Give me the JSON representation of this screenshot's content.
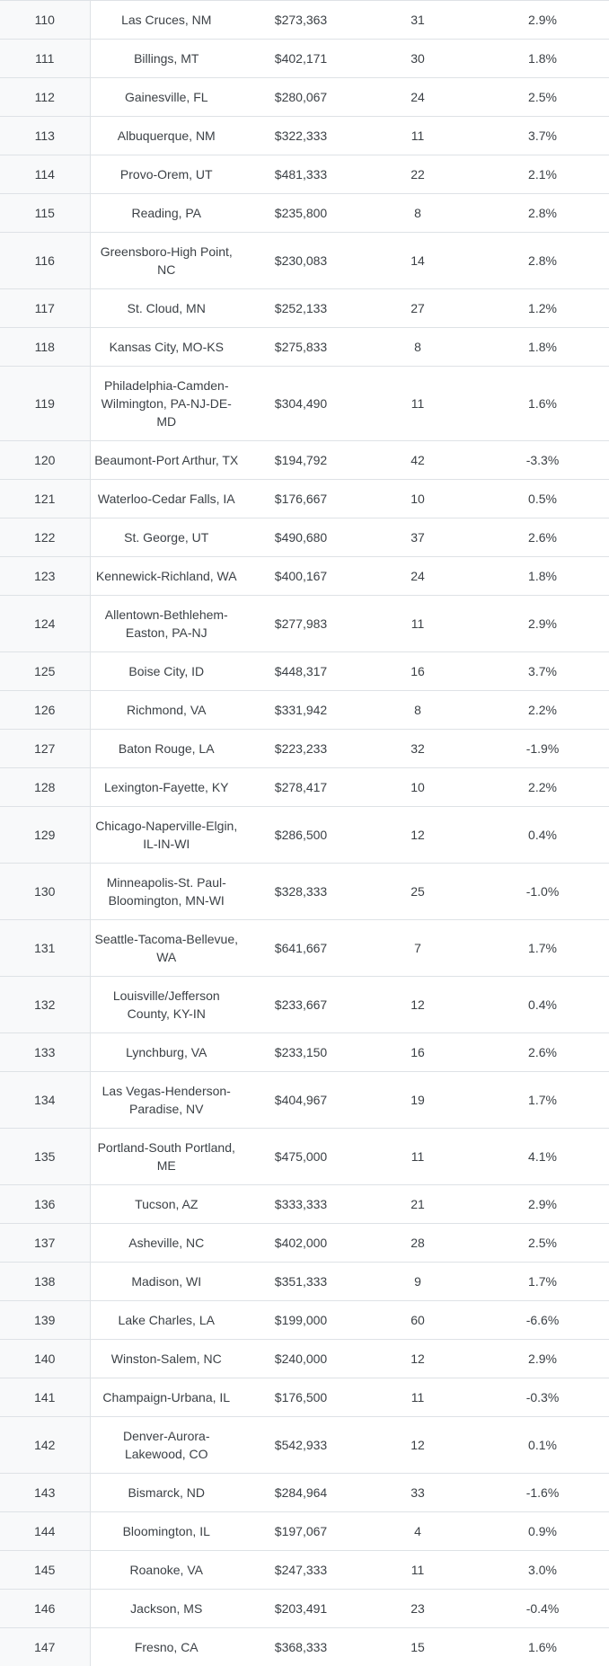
{
  "colors": {
    "rank_column_bg": "#f8f9fa",
    "row_bg": "#ffffff",
    "border": "#dee2e6",
    "text": "#3c4146"
  },
  "table": {
    "columns": [
      "rank",
      "metro_area",
      "median_price",
      "count",
      "percent_change"
    ],
    "rows": [
      {
        "rank": "110",
        "city": "Las Cruces, NM",
        "price": "$273,363",
        "count": "31",
        "pct": "2.9%"
      },
      {
        "rank": "111",
        "city": "Billings, MT",
        "price": "$402,171",
        "count": "30",
        "pct": "1.8%"
      },
      {
        "rank": "112",
        "city": "Gainesville, FL",
        "price": "$280,067",
        "count": "24",
        "pct": "2.5%"
      },
      {
        "rank": "113",
        "city": "Albuquerque, NM",
        "price": "$322,333",
        "count": "11",
        "pct": "3.7%"
      },
      {
        "rank": "114",
        "city": "Provo-Orem, UT",
        "price": "$481,333",
        "count": "22",
        "pct": "2.1%"
      },
      {
        "rank": "115",
        "city": "Reading, PA",
        "price": "$235,800",
        "count": "8",
        "pct": "2.8%"
      },
      {
        "rank": "116",
        "city": "Greensboro-High Point, NC",
        "price": "$230,083",
        "count": "14",
        "pct": "2.8%"
      },
      {
        "rank": "117",
        "city": "St. Cloud, MN",
        "price": "$252,133",
        "count": "27",
        "pct": "1.2%"
      },
      {
        "rank": "118",
        "city": "Kansas City, MO-KS",
        "price": "$275,833",
        "count": "8",
        "pct": "1.8%"
      },
      {
        "rank": "119",
        "city": "Philadelphia-Camden-Wilmington, PA-NJ-DE-MD",
        "price": "$304,490",
        "count": "11",
        "pct": "1.6%"
      },
      {
        "rank": "120",
        "city": "Beaumont-Port Arthur, TX",
        "price": "$194,792",
        "count": "42",
        "pct": "-3.3%"
      },
      {
        "rank": "121",
        "city": "Waterloo-Cedar Falls, IA",
        "price": "$176,667",
        "count": "10",
        "pct": "0.5%"
      },
      {
        "rank": "122",
        "city": "St. George, UT",
        "price": "$490,680",
        "count": "37",
        "pct": "2.6%"
      },
      {
        "rank": "123",
        "city": "Kennewick-Richland, WA",
        "price": "$400,167",
        "count": "24",
        "pct": "1.8%"
      },
      {
        "rank": "124",
        "city": "Allentown-Bethlehem-Easton, PA-NJ",
        "price": "$277,983",
        "count": "11",
        "pct": "2.9%"
      },
      {
        "rank": "125",
        "city": "Boise City, ID",
        "price": "$448,317",
        "count": "16",
        "pct": "3.7%"
      },
      {
        "rank": "126",
        "city": "Richmond, VA",
        "price": "$331,942",
        "count": "8",
        "pct": "2.2%"
      },
      {
        "rank": "127",
        "city": "Baton Rouge, LA",
        "price": "$223,233",
        "count": "32",
        "pct": "-1.9%"
      },
      {
        "rank": "128",
        "city": "Lexington-Fayette, KY",
        "price": "$278,417",
        "count": "10",
        "pct": "2.2%"
      },
      {
        "rank": "129",
        "city": "Chicago-Naperville-Elgin, IL-IN-WI",
        "price": "$286,500",
        "count": "12",
        "pct": "0.4%"
      },
      {
        "rank": "130",
        "city": "Minneapolis-St. Paul-Bloomington, MN-WI",
        "price": "$328,333",
        "count": "25",
        "pct": "-1.0%"
      },
      {
        "rank": "131",
        "city": "Seattle-Tacoma-Bellevue, WA",
        "price": "$641,667",
        "count": "7",
        "pct": "1.7%"
      },
      {
        "rank": "132",
        "city": "Louisville/Jefferson County, KY-IN",
        "price": "$233,667",
        "count": "12",
        "pct": "0.4%"
      },
      {
        "rank": "133",
        "city": "Lynchburg, VA",
        "price": "$233,150",
        "count": "16",
        "pct": "2.6%"
      },
      {
        "rank": "134",
        "city": "Las Vegas-Henderson-Paradise, NV",
        "price": "$404,967",
        "count": "19",
        "pct": "1.7%"
      },
      {
        "rank": "135",
        "city": "Portland-South Portland, ME",
        "price": "$475,000",
        "count": "11",
        "pct": "4.1%"
      },
      {
        "rank": "136",
        "city": "Tucson, AZ",
        "price": "$333,333",
        "count": "21",
        "pct": "2.9%"
      },
      {
        "rank": "137",
        "city": "Asheville, NC",
        "price": "$402,000",
        "count": "28",
        "pct": "2.5%"
      },
      {
        "rank": "138",
        "city": "Madison, WI",
        "price": "$351,333",
        "count": "9",
        "pct": "1.7%"
      },
      {
        "rank": "139",
        "city": "Lake Charles, LA",
        "price": "$199,000",
        "count": "60",
        "pct": "-6.6%"
      },
      {
        "rank": "140",
        "city": "Winston-Salem, NC",
        "price": "$240,000",
        "count": "12",
        "pct": "2.9%"
      },
      {
        "rank": "141",
        "city": "Champaign-Urbana, IL",
        "price": "$176,500",
        "count": "11",
        "pct": "-0.3%"
      },
      {
        "rank": "142",
        "city": "Denver-Aurora-Lakewood, CO",
        "price": "$542,933",
        "count": "12",
        "pct": "0.1%"
      },
      {
        "rank": "143",
        "city": "Bismarck, ND",
        "price": "$284,964",
        "count": "33",
        "pct": "-1.6%"
      },
      {
        "rank": "144",
        "city": "Bloomington, IL",
        "price": "$197,067",
        "count": "4",
        "pct": "0.9%"
      },
      {
        "rank": "145",
        "city": "Roanoke, VA",
        "price": "$247,333",
        "count": "11",
        "pct": "3.0%"
      },
      {
        "rank": "146",
        "city": "Jackson, MS",
        "price": "$203,491",
        "count": "23",
        "pct": "-0.4%"
      },
      {
        "rank": "147",
        "city": "Fresno, CA",
        "price": "$368,333",
        "count": "15",
        "pct": "1.6%"
      }
    ]
  }
}
